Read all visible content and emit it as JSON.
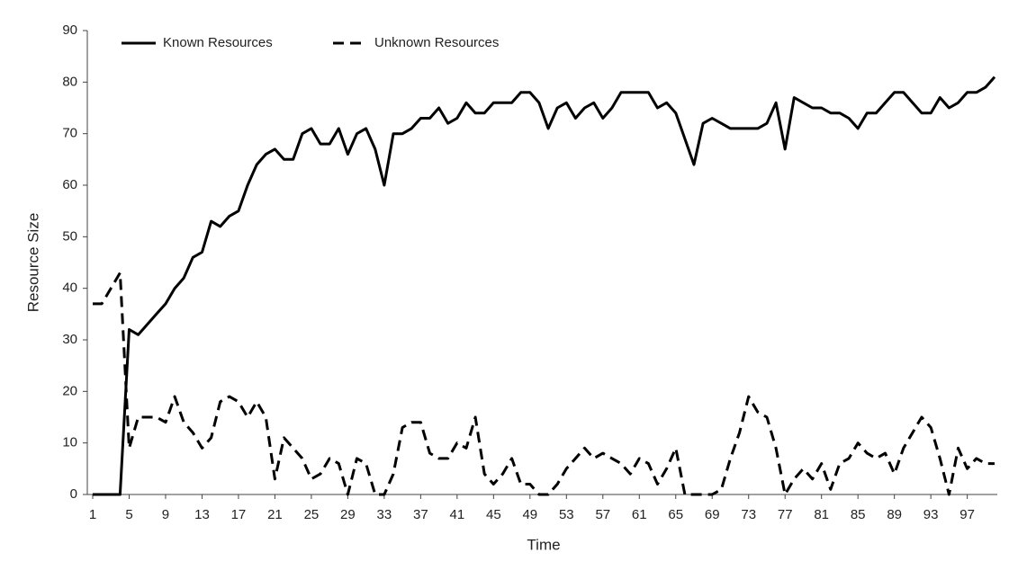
{
  "chart_data": {
    "type": "line",
    "x_label": "Time",
    "y_label": "Resource Size",
    "x": [
      1,
      2,
      3,
      4,
      5,
      6,
      7,
      8,
      9,
      10,
      11,
      12,
      13,
      14,
      15,
      16,
      17,
      18,
      19,
      20,
      21,
      22,
      23,
      24,
      25,
      26,
      27,
      28,
      29,
      30,
      31,
      32,
      33,
      34,
      35,
      36,
      37,
      38,
      39,
      40,
      41,
      42,
      43,
      44,
      45,
      46,
      47,
      48,
      49,
      50,
      51,
      52,
      53,
      54,
      55,
      56,
      57,
      58,
      59,
      60,
      61,
      62,
      63,
      64,
      65,
      66,
      67,
      68,
      69,
      70,
      71,
      72,
      73,
      74,
      75,
      76,
      77,
      78,
      79,
      80,
      81,
      82,
      83,
      84,
      85,
      86,
      87,
      88,
      89,
      90,
      91,
      92,
      93,
      94,
      95,
      96,
      97,
      98,
      99,
      100
    ],
    "series": [
      {
        "name": "Known Resources",
        "color": "#000000",
        "dashed": false,
        "values": [
          0,
          0,
          0,
          0,
          32,
          31,
          33,
          35,
          37,
          40,
          42,
          46,
          47,
          53,
          52,
          54,
          55,
          60,
          64,
          66,
          67,
          65,
          65,
          70,
          71,
          68,
          68,
          71,
          66,
          70,
          71,
          67,
          60,
          70,
          70,
          71,
          73,
          73,
          75,
          72,
          73,
          76,
          74,
          74,
          76,
          76,
          76,
          78,
          78,
          76,
          71,
          75,
          76,
          73,
          75,
          76,
          73,
          75,
          78,
          78,
          78,
          78,
          75,
          76,
          74,
          69,
          64,
          72,
          73,
          72,
          71,
          71,
          71,
          71,
          72,
          76,
          67,
          77,
          76,
          75,
          75,
          74,
          74,
          73,
          71,
          74,
          74,
          76,
          78,
          78,
          76,
          74,
          74,
          77,
          75,
          76,
          78,
          78,
          79,
          81
        ]
      },
      {
        "name": "Unknown Resources",
        "color": "#000000",
        "dashed": true,
        "values": [
          37,
          37,
          40,
          43,
          9,
          15,
          15,
          15,
          14,
          19,
          14,
          12,
          9,
          11,
          18,
          19,
          18,
          15,
          18,
          15,
          3,
          11,
          9,
          7,
          3,
          4,
          7,
          6,
          0,
          7,
          6,
          0,
          0,
          4,
          13,
          14,
          14,
          8,
          7,
          7,
          10,
          9,
          15,
          4,
          2,
          4,
          7,
          2,
          2,
          0,
          0,
          2,
          5,
          7,
          9,
          7,
          8,
          7,
          6,
          4,
          7,
          6,
          2,
          5,
          9,
          0,
          0,
          0,
          0,
          1,
          7,
          12,
          19,
          16,
          15,
          9,
          0,
          3,
          5,
          3,
          6,
          1,
          6,
          7,
          10,
          8,
          7,
          8,
          4,
          9,
          12,
          15,
          13,
          7,
          0,
          9,
          5,
          7,
          6,
          6
        ]
      }
    ],
    "xlim": [
      1,
      100
    ],
    "xticks": [
      1,
      5,
      9,
      13,
      17,
      21,
      25,
      29,
      33,
      37,
      41,
      45,
      49,
      53,
      57,
      61,
      65,
      69,
      73,
      77,
      81,
      85,
      89,
      93,
      97
    ],
    "ylim": [
      0,
      90
    ],
    "yticks": [
      0,
      10,
      20,
      30,
      40,
      50,
      60,
      70,
      80,
      90
    ],
    "legend": "top-left"
  }
}
